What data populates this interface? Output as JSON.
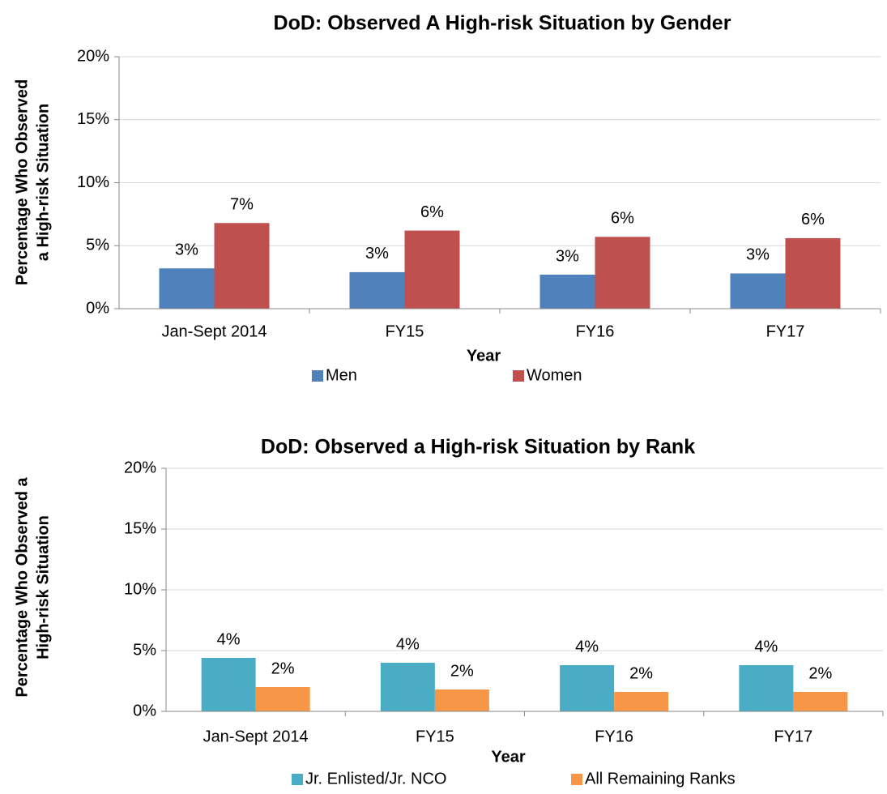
{
  "chart_data": [
    {
      "type": "bar",
      "title": "DoD: Observed A High-risk Situation by Gender",
      "ylabel": [
        "Percentage Who Observed",
        "a High-risk Situation"
      ],
      "xlabel": "Year",
      "categories": [
        "Jan-Sept 2014",
        "FY15",
        "FY16",
        "FY17"
      ],
      "series": [
        {
          "name": "Men",
          "color": "#4f81bd",
          "values": [
            3.2,
            2.9,
            2.7,
            2.8
          ],
          "value_labels": [
            "3%",
            "3%",
            "3%",
            "3%"
          ]
        },
        {
          "name": "Women",
          "color": "#c0504d",
          "values": [
            6.8,
            6.2,
            5.7,
            5.6
          ],
          "value_labels": [
            "7%",
            "6%",
            "6%",
            "6%"
          ]
        }
      ],
      "ylim": [
        0,
        20
      ],
      "yticks": [
        {
          "value": 0,
          "label": "0%"
        },
        {
          "value": 5,
          "label": "5%"
        },
        {
          "value": 10,
          "label": "10%"
        },
        {
          "value": 15,
          "label": "15%"
        },
        {
          "value": 20,
          "label": "20%"
        }
      ],
      "grid": true,
      "legend": "bottom"
    },
    {
      "type": "bar",
      "title": "DoD: Observed a High-risk Situation by Rank",
      "ylabel": [
        "Percentage Who Observed a",
        "High-risk Situation"
      ],
      "xlabel": "Year",
      "categories": [
        "Jan-Sept 2014",
        "FY15",
        "FY16",
        "FY17"
      ],
      "series": [
        {
          "name": "Jr. Enlisted/Jr. NCO",
          "color": "#4bacc6",
          "values": [
            4.4,
            4.0,
            3.8,
            3.8
          ],
          "value_labels": [
            "4%",
            "4%",
            "4%",
            "4%"
          ]
        },
        {
          "name": "All Remaining Ranks",
          "color": "#f79646",
          "values": [
            2.0,
            1.8,
            1.6,
            1.6
          ],
          "value_labels": [
            "2%",
            "2%",
            "2%",
            "2%"
          ]
        }
      ],
      "ylim": [
        0,
        20
      ],
      "yticks": [
        {
          "value": 0,
          "label": "0%"
        },
        {
          "value": 5,
          "label": "5%"
        },
        {
          "value": 10,
          "label": "10%"
        },
        {
          "value": 15,
          "label": "15%"
        },
        {
          "value": 20,
          "label": "20%"
        }
      ],
      "grid": true,
      "legend": "bottom"
    }
  ]
}
